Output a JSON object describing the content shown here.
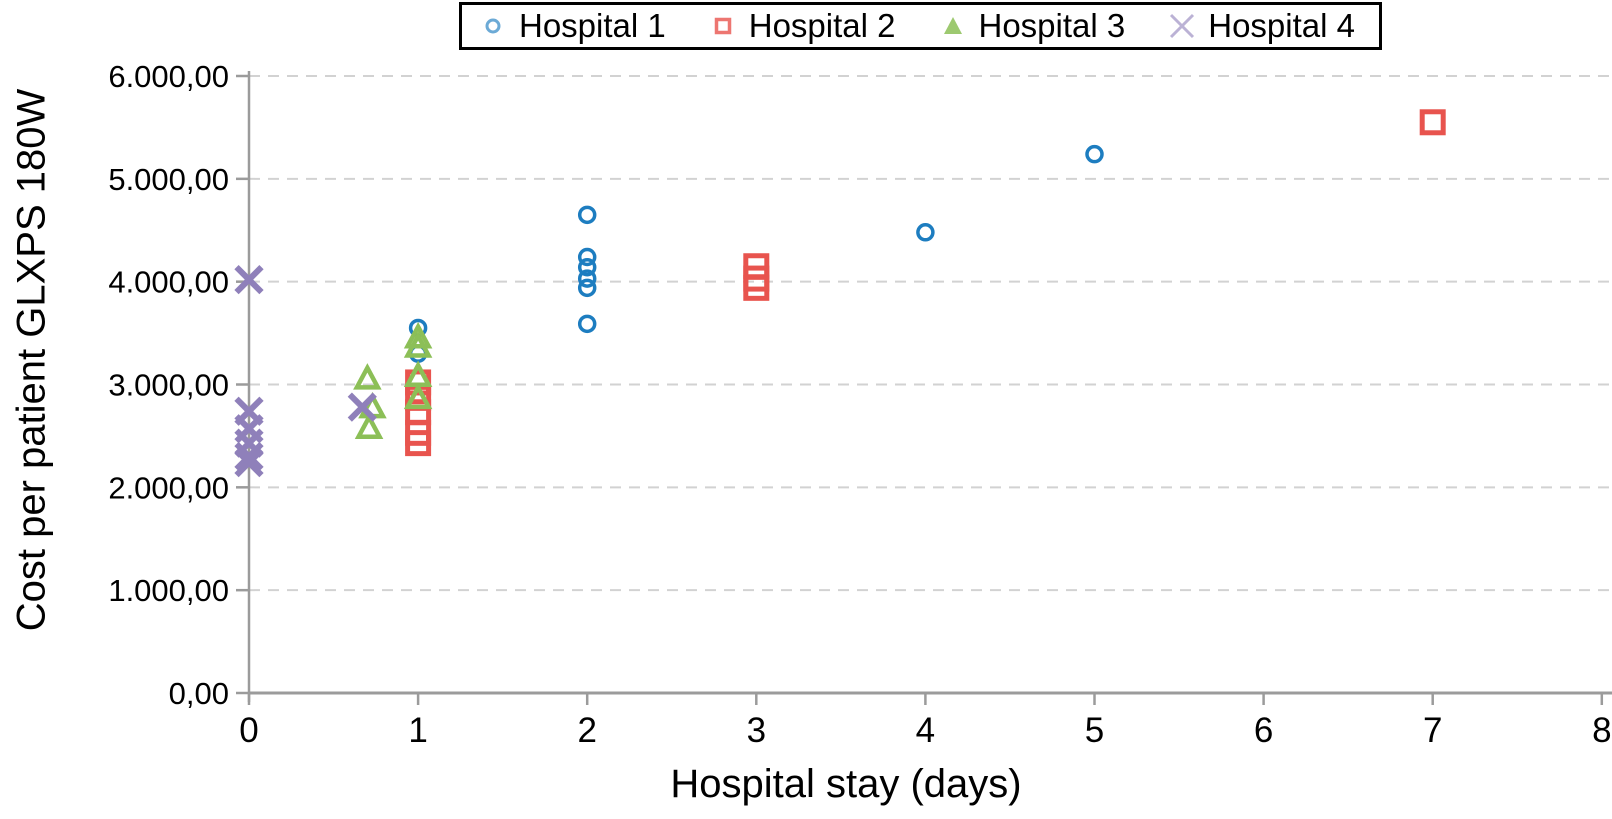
{
  "chart_data": {
    "type": "scatter",
    "title": "",
    "xlabel": "Hospital stay (days)",
    "ylabel": "Cost per patient GLXPS 180W",
    "xlim": [
      0,
      8
    ],
    "ylim": [
      0,
      6000
    ],
    "x_ticks": [
      0,
      1,
      2,
      3,
      4,
      5,
      6,
      7,
      8
    ],
    "x_tick_labels": [
      "0",
      "1",
      "2",
      "3",
      "4",
      "5",
      "6",
      "7",
      "8"
    ],
    "y_ticks": [
      0,
      1000,
      2000,
      3000,
      4000,
      5000,
      6000
    ],
    "y_tick_labels": [
      "0,00",
      "1.000,00",
      "2.000,00",
      "3.000,00",
      "4.000,00",
      "5.000,00",
      "6.000,00"
    ],
    "grid": "horizontal-dashed",
    "legend_position": "top-center",
    "series": [
      {
        "name": "Hospital 1",
        "marker": "circle",
        "color": "#1d7dc0",
        "points": [
          [
            1,
            3550
          ],
          [
            1,
            3300
          ],
          [
            2,
            4650
          ],
          [
            2,
            4240
          ],
          [
            2,
            4140
          ],
          [
            2,
            4030
          ],
          [
            2,
            3940
          ],
          [
            2,
            3590
          ],
          [
            4,
            4480
          ],
          [
            5,
            5240
          ]
        ]
      },
      {
        "name": "Hospital 2",
        "marker": "square",
        "color": "#e8544e",
        "points": [
          [
            1,
            3020
          ],
          [
            1,
            2870
          ],
          [
            1,
            2730
          ],
          [
            1,
            2530
          ],
          [
            1,
            2430
          ],
          [
            3,
            4150
          ],
          [
            3,
            4030
          ],
          [
            3,
            3940
          ],
          [
            7,
            5550
          ]
        ]
      },
      {
        "name": "Hospital 3",
        "marker": "triangle",
        "color": "#8cbf57",
        "points": [
          [
            0.7,
            3050
          ],
          [
            0.73,
            2770
          ],
          [
            0.71,
            2570
          ],
          [
            1,
            3450
          ],
          [
            1,
            3360
          ],
          [
            1,
            3075
          ],
          [
            1,
            2860
          ]
        ]
      },
      {
        "name": "Hospital 4",
        "marker": "x",
        "color": "#8f80ba",
        "points": [
          [
            0,
            4020
          ],
          [
            0,
            2740
          ],
          [
            0,
            2570
          ],
          [
            0,
            2430
          ],
          [
            0,
            2300
          ],
          [
            0,
            2240
          ],
          [
            0.67,
            2780
          ]
        ]
      }
    ],
    "style": {
      "background": "#ffffff",
      "axis_color": "#9b9b9b",
      "grid_color": "#d2d2d2",
      "text_color": "#000000",
      "legend_border_color": "#000000"
    }
  }
}
